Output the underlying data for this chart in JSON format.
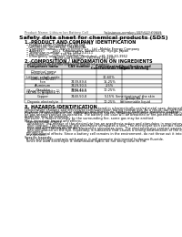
{
  "doc_title": "Safety data sheet for chemical products (SDS)",
  "header_left": "Product Name: Lithium Ion Battery Cell",
  "header_right_line1": "Substance number: SBR-049-00619",
  "header_right_line2": "Established / Revision: Dec.7.2009",
  "background_color": "#ffffff",
  "text_color": "#000000",
  "light_gray": "#cccccc",
  "section1_title": "1. PRODUCT AND COMPANY IDENTIFICATION",
  "section1_items": [
    "Product name: Lithium Ion Battery Cell",
    "Product code: Cylindrical-type cell",
    "  (UR18650U, UR18650E, UR18650A)",
    "Company name:    Sanyo Electric Co., Ltd., Mobile Energy Company",
    "Address:         2001  Kamionuten, Sumoto-City, Hyogo, Japan",
    "Telephone number:    +81-799-20-4111",
    "Fax number:   +81-799-26-4121",
    "Emergency telephone number (Weekday): +81-799-20-3962",
    "                          (Night and holiday): +81-799-26-4101"
  ],
  "section2_title": "2. COMPOSITION / INFORMATION ON INGREDIENTS",
  "section2_intro": "Substance or preparation: Preparation",
  "section2_sub": "Information about the chemical nature of product:",
  "table_headers": [
    "Component name",
    "CAS number",
    "Concentration /\nConcentration range",
    "Classification and\nhazard labeling"
  ],
  "table_rows": [
    [
      "Chemical name\n(Formal name)",
      "",
      "",
      ""
    ],
    [
      "Lithium cobalt oxide\n(LiMn-Co/Ni/O2)",
      "",
      "30-60%",
      ""
    ],
    [
      "Iron",
      "7439-89-6",
      "15-25%",
      ""
    ],
    [
      "Aluminum",
      "7429-90-5",
      "2-5%",
      ""
    ],
    [
      "Graphite\n(Metal in graphite-1)\n(Al-Mo in graphite-1)",
      "7782-42-5\n7429-90-5",
      "10-25%",
      ""
    ],
    [
      "Copper",
      "7440-50-8",
      "5-15%",
      "Sensitization of the skin\ngroup No.2"
    ],
    [
      "Organic electrolyte",
      "",
      "10-25%",
      "Inflammable liquid"
    ]
  ],
  "section3_title": "3. HAZARDS IDENTIFICATION",
  "section3_text": [
    "For this battery cell, chemical materials are stored in a hermetically sealed metal case, designed to withstand",
    "temperature changes and electrolyte-communication during normal use. As a result, during normal use, there is no",
    "physical danger of ignition or explosion and there is no danger of hazardous materials leakage.",
    "However, if exposed to a fire, added mechanical shocks, decomposed, an/or electric current of heavy use can",
    "be gas release can/not be operated. The battery cell case will be breached or fire-potential, hazardous",
    "materials may be released.",
    "Moreover, if heated strongly by the surrounding fire, some gas may be emitted.",
    "",
    "Most important hazard and effects:",
    "  Human health effects:",
    "    Inhalation: The release of the electrolyte has an anesthesia action and stimulates in respiratory tract.",
    "    Skin contact: The release of the electrolyte stimulates a skin. The electrolyte skin contact causes a",
    "    sore and stimulation on the skin.",
    "    Eye contact: The release of the electrolyte stimulates eyes. The electrolyte eye contact causes a sore",
    "    and stimulation on the eye. Especially, a substance that causes a strong inflammation of the eye is",
    "    contained.",
    "  Environmental effects: Since a battery cell remains in the environment, do not throw out it into the",
    "  environment.",
    "",
    "Specific hazards:",
    "  If the electrolyte contacts with water, it will generate detrimental hydrogen fluoride.",
    "  Since the used electrolyte is inflammable liquid, do not bring close to fire."
  ]
}
